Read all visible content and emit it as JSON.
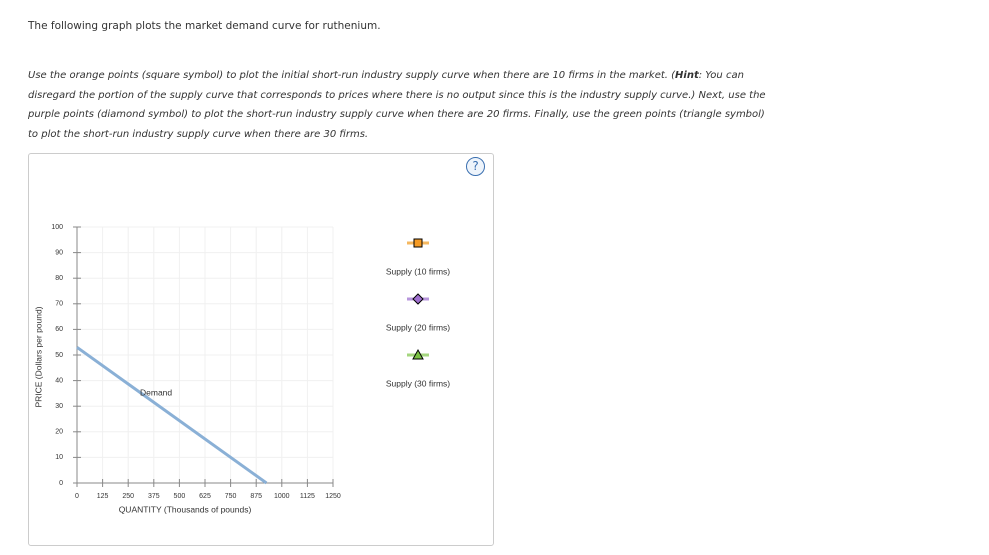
{
  "intro": "The following graph plots the market demand curve for ruthenium.",
  "instructions": {
    "before": "Use the orange points (square symbol) to plot the initial short-run industry supply curve when there are 10 firms in the market. (",
    "hint": "Hint",
    "after": ": You can disregard the portion of the supply curve that corresponds to prices where there is no output since this is the industry supply curve.) Next, use the purple points (diamond symbol) to plot the short-run industry supply curve when there are 20 firms. Finally, use the green points (triangle symbol) to plot the short-run industry supply curve when there are 30 firms."
  },
  "help": "?",
  "graph": {
    "xlabel": "QUANTITY (Thousands of pounds)",
    "ylabel": "PRICE (Dollars per pound)",
    "xlim": [
      0,
      1250
    ],
    "ylim": [
      0,
      100
    ],
    "xticks": [
      0,
      125,
      250,
      375,
      500,
      625,
      750,
      875,
      1000,
      1125,
      1250
    ],
    "yticks": [
      0,
      10,
      20,
      30,
      40,
      50,
      60,
      70,
      80,
      90,
      100
    ],
    "demand": {
      "name": "Demand",
      "color": "#8ab0d6",
      "x": [
        0,
        925
      ],
      "y": [
        53,
        0
      ]
    },
    "legend": [
      {
        "name": "Supply (10 firms)",
        "symbol": "square",
        "color": "#f59a23",
        "line": "#f5b860"
      },
      {
        "name": "Supply (20 firms)",
        "symbol": "diamond",
        "color": "#a070d0",
        "line": "#b796dc"
      },
      {
        "name": "Supply (30 firms)",
        "symbol": "triangle",
        "color": "#7ac143",
        "line": "#a4d67e"
      }
    ]
  }
}
